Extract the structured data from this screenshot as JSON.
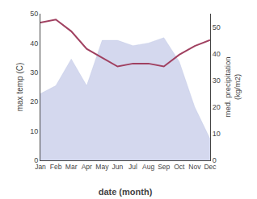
{
  "chart_data": {
    "type": "line",
    "categories": [
      "Jan",
      "Feb",
      "Mar",
      "Apr",
      "May",
      "Jun",
      "Jul",
      "Aug",
      "Sep",
      "Oct",
      "Nov",
      "Dec"
    ],
    "xlabel": "date (month)",
    "ylabel": "max temp (C)",
    "y2label": "med. precipitation\n(kg/m2)",
    "ylim": [
      0,
      50
    ],
    "yticks": [
      0,
      10,
      20,
      30,
      40,
      50
    ],
    "y2lim": [
      0,
      55
    ],
    "y2ticks": [
      0,
      10,
      20,
      30,
      40,
      50
    ],
    "grid": false,
    "series": [
      {
        "type": "area",
        "axis": "y2",
        "color": "#b0b8e0",
        "values": [
          25,
          28,
          38,
          28,
          45,
          45,
          43,
          44,
          46,
          37,
          20,
          8
        ]
      },
      {
        "type": "line",
        "color": "#a04060",
        "values": [
          47,
          48,
          44,
          38,
          35,
          32,
          33,
          33,
          32,
          36,
          39,
          41
        ]
      }
    ]
  }
}
